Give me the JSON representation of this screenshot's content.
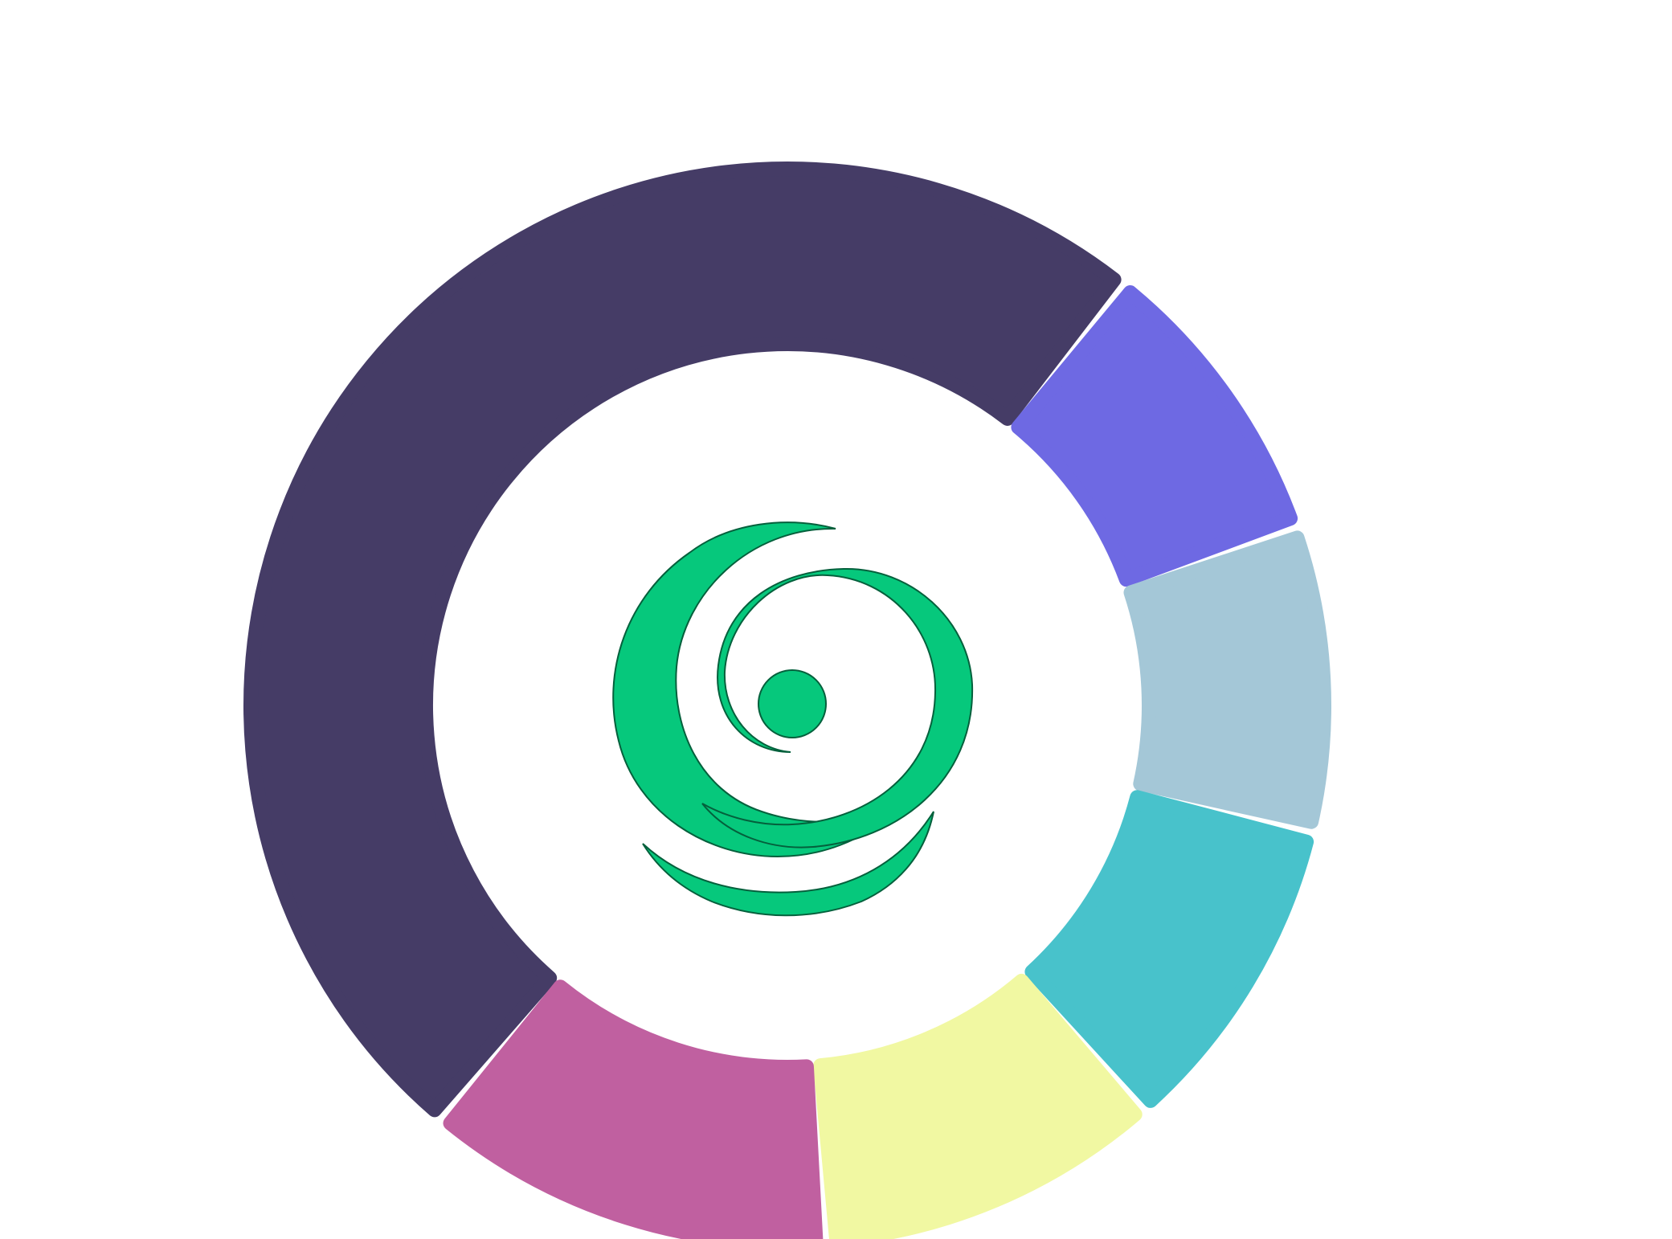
{
  "chart_data": {
    "type": "pie",
    "variant": "donut",
    "title": "",
    "legend": "none",
    "data_labels": "none",
    "slices": [
      {
        "value": 44.5,
        "color": "#453C66"
      },
      {
        "value": 8.0,
        "color": "#6E69E3"
      },
      {
        "value": 8.2,
        "color": "#A4C7D7"
      },
      {
        "value": 8.7,
        "color": "#48C2CB"
      },
      {
        "value": 9.3,
        "color": "#F1F8A2"
      },
      {
        "value": 11.0,
        "color": "#C060A0"
      }
    ]
  },
  "center_logo": {
    "icon": "green-spiral-logo-icon",
    "color": "#06C87C",
    "outline_color": "#04603C"
  }
}
